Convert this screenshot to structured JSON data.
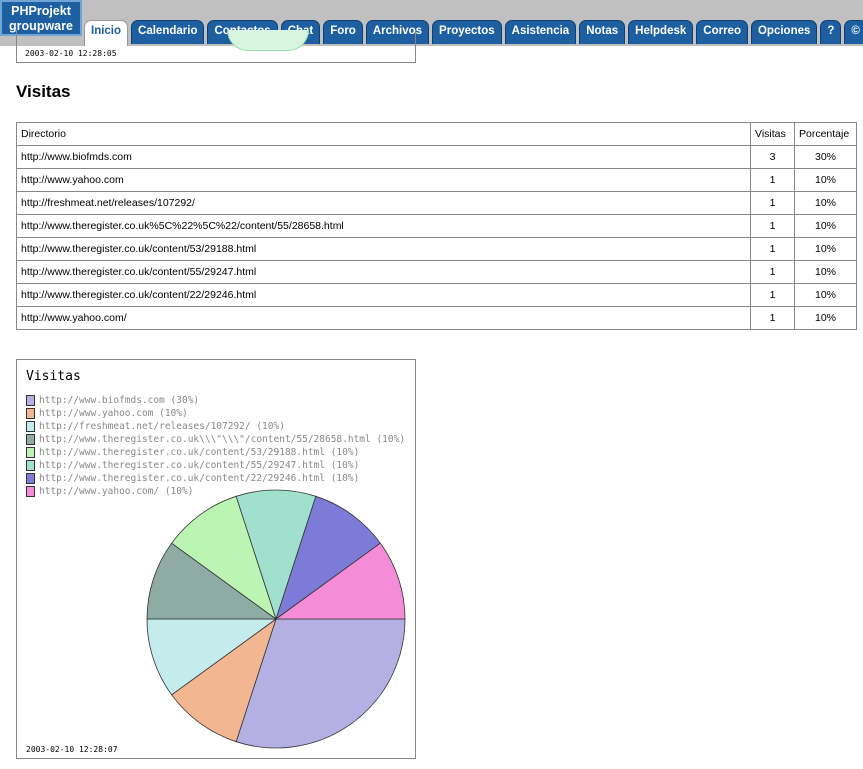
{
  "app": {
    "logo_line1": "PHProjekt",
    "logo_line2": "groupware"
  },
  "nav": {
    "tabs": [
      {
        "label": "Inicio",
        "active": true
      },
      {
        "label": "Calendario"
      },
      {
        "label": "Contactos"
      },
      {
        "label": "Chat"
      },
      {
        "label": "Foro"
      },
      {
        "label": "Archivos"
      },
      {
        "label": "Proyectos"
      },
      {
        "label": "Asistencia"
      },
      {
        "label": "Notas"
      },
      {
        "label": "Helpdesk"
      },
      {
        "label": "Correo"
      },
      {
        "label": "Opciones"
      },
      {
        "label": "?"
      },
      {
        "label": "©"
      },
      {
        "label": "»"
      }
    ]
  },
  "top_timestamp": "2003-02-10 12:28:05",
  "section_title": "Visitas",
  "table": {
    "headers": [
      "Directorio",
      "Visitas",
      "Porcentaje"
    ],
    "rows": [
      [
        "http://www.biofmds.com",
        "3",
        "30%"
      ],
      [
        "http://www.yahoo.com",
        "1",
        "10%"
      ],
      [
        "http://freshmeat.net/releases/107292/",
        "1",
        "10%"
      ],
      [
        "http://www.theregister.co.uk%5C%22%5C%22/content/55/28658.html",
        "1",
        "10%"
      ],
      [
        "http://www.theregister.co.uk/content/53/29188.html",
        "1",
        "10%"
      ],
      [
        "http://www.theregister.co.uk/content/55/29247.html",
        "1",
        "10%"
      ],
      [
        "http://www.theregister.co.uk/content/22/29246.html",
        "1",
        "10%"
      ],
      [
        "http://www.yahoo.com/",
        "1",
        "10%"
      ]
    ]
  },
  "chart_data": {
    "type": "pie",
    "title": "Visitas",
    "legend_position": "top-left",
    "slices": [
      {
        "label": "http://www.biofmds.com (30%)",
        "value": 30,
        "color": "#b4b0e4"
      },
      {
        "label": "http://www.yahoo.com (10%)",
        "value": 10,
        "color": "#f2b690"
      },
      {
        "label": "http://freshmeat.net/releases/107292/ (10%)",
        "value": 10,
        "color": "#c4ecec"
      },
      {
        "label": "http://www.theregister.co.uk\\\\\\\"\\\\\\\"/content/55/28658.html (10%)",
        "value": 10,
        "color": "#8eaba4"
      },
      {
        "label": "http://www.theregister.co.uk/content/53/29188.html (10%)",
        "value": 10,
        "color": "#bcf4b4"
      },
      {
        "label": "http://www.theregister.co.uk/content/55/29247.html (10%)",
        "value": 10,
        "color": "#a0e0cc"
      },
      {
        "label": "http://www.theregister.co.uk/content/22/29246.html (10%)",
        "value": 10,
        "color": "#7c7cd8"
      },
      {
        "label": "http://www.yahoo.com/ (10%)",
        "value": 10,
        "color": "#f48cd8"
      }
    ]
  },
  "chart_timestamp": "2003-02-10 12:28:07"
}
